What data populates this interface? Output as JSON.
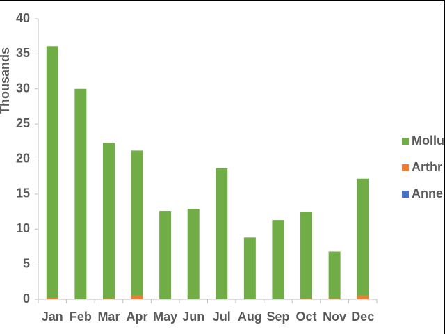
{
  "chart_data": {
    "type": "stacked_bar",
    "y_label": "Thousands",
    "categories": [
      "Jan",
      "Feb",
      "Mar",
      "Apr",
      "May",
      "Jun",
      "Jul",
      "Aug",
      "Sep",
      "Oct",
      "Nov",
      "Dec"
    ],
    "series": [
      {
        "name": "Anne",
        "color": "#4472c4",
        "values": [
          0,
          0,
          0,
          0,
          0,
          0,
          0,
          0,
          0,
          0,
          0,
          0
        ]
      },
      {
        "name": "Arthr",
        "color": "#ed7d31",
        "values": [
          0.2,
          0,
          0.1,
          0.5,
          0,
          0,
          0,
          0,
          0,
          0.1,
          0.1,
          0.5
        ]
      },
      {
        "name": "Mollu",
        "color": "#70ad47",
        "values": [
          35.9,
          30,
          22.2,
          20.7,
          12.6,
          12.9,
          18.7,
          8.8,
          11.3,
          12.4,
          6.7,
          16.7
        ]
      }
    ],
    "ylim": [
      0,
      40
    ],
    "yticks": [
      0,
      5,
      10,
      15,
      20,
      25,
      30,
      35,
      40
    ],
    "grid": false
  }
}
